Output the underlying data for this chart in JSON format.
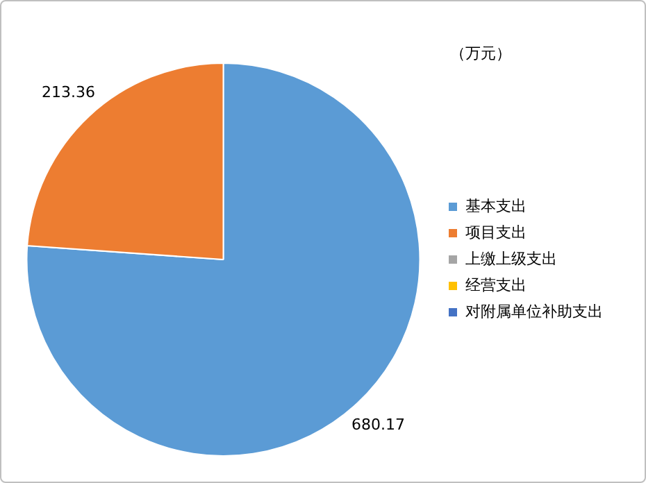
{
  "chart_data": {
    "type": "pie",
    "categories": [
      "基本支出",
      "项目支出",
      "上缴上级支出",
      "经营支出",
      "对附属单位补助支出"
    ],
    "values": [
      680.17,
      213.36,
      0,
      0,
      0
    ],
    "value_labels": [
      "680.17",
      "213.36",
      null,
      null,
      null
    ],
    "colors": [
      "#5b9bd5",
      "#ed7d31",
      "#a5a5a5",
      "#ffc000",
      "#4472c4"
    ],
    "annotations": [
      "（万元）"
    ],
    "legend": "right"
  }
}
